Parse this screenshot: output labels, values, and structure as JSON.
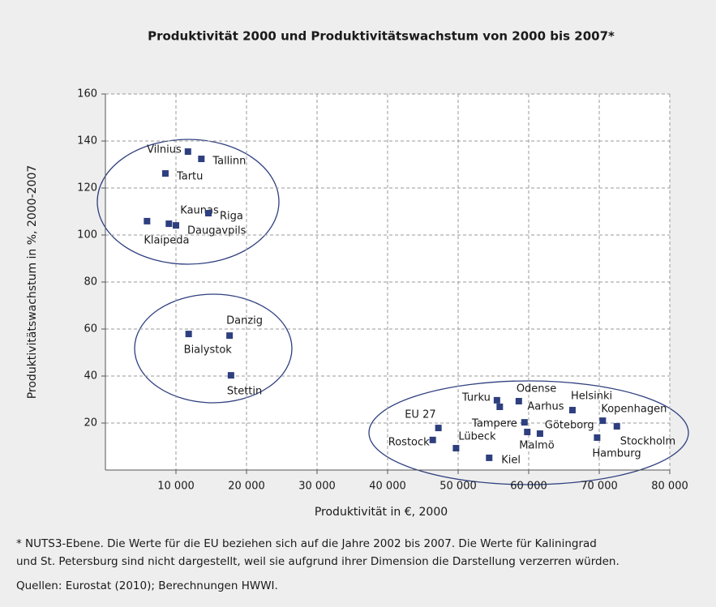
{
  "chart_data": {
    "type": "scatter",
    "title": "Produktivität 2000 und Produktivitätswachstum von 2000 bis 2007*",
    "x_label": "Produktivität in €, 2000",
    "y_label": "Produktivitätswachstum in %, 2000-2007",
    "labels": [
      "Vilnius",
      "Tallinn",
      "Tartu",
      "Kaunas",
      "Riga",
      "Daugavpils",
      "Klaipeda",
      "Danzig",
      "Bialystok",
      "Stettin",
      "Turku",
      "Aarhus",
      "Odense",
      "Helsinki",
      "Kopenhagen",
      "Stockholm",
      "Hamburg",
      "EU 27",
      "Rostock",
      "Lübeck",
      "Kiel",
      "Tampere",
      "Malmö",
      "Göteborg"
    ],
    "x": [
      11700,
      13600,
      8500,
      9000,
      14600,
      10000,
      5900,
      17600,
      11800,
      17800,
      55500,
      55900,
      58600,
      66200,
      70500,
      72500,
      69700,
      47200,
      46400,
      49700,
      54400,
      59400,
      59800,
      61600
    ],
    "values": [
      135.5,
      132.4,
      126.2,
      104.8,
      109.3,
      104.1,
      105.9,
      57.2,
      57.9,
      40.3,
      29.7,
      26.9,
      29.3,
      25.5,
      21.0,
      18.6,
      13.8,
      17.9,
      12.8,
      9.3,
      5.2,
      20.3,
      16.2,
      15.5
    ],
    "color": "#2e3f7f",
    "xlim": [
      0,
      80000
    ],
    "ylim": [
      0,
      160
    ],
    "xticks": [
      {
        "value": 10000,
        "label": "10 000"
      },
      {
        "value": 20000,
        "label": "20 000"
      },
      {
        "value": 30000,
        "label": "30 000"
      },
      {
        "value": 40000,
        "label": "40 000"
      },
      {
        "value": 50000,
        "label": "50 000"
      },
      {
        "value": 60000,
        "label": "60 000"
      },
      {
        "value": 70000,
        "label": "70 000"
      },
      {
        "value": 80000,
        "label": "80 000"
      }
    ],
    "yticks": [
      20,
      40,
      60,
      80,
      100,
      120,
      140,
      160
    ],
    "grid": true
  },
  "footnote": {
    "line1": "* NUTS3-Ebene. Die Werte für die EU beziehen sich auf die Jahre 2002 bis 2007. Die Werte für Kaliningrad",
    "line2": "und St. Petersburg sind nicht dargestellt, weil sie aufgrund ihrer Dimension die Darstellung verzerren würden.",
    "source": "Quellen: Eurostat (2010); Berechnungen HWWI."
  }
}
